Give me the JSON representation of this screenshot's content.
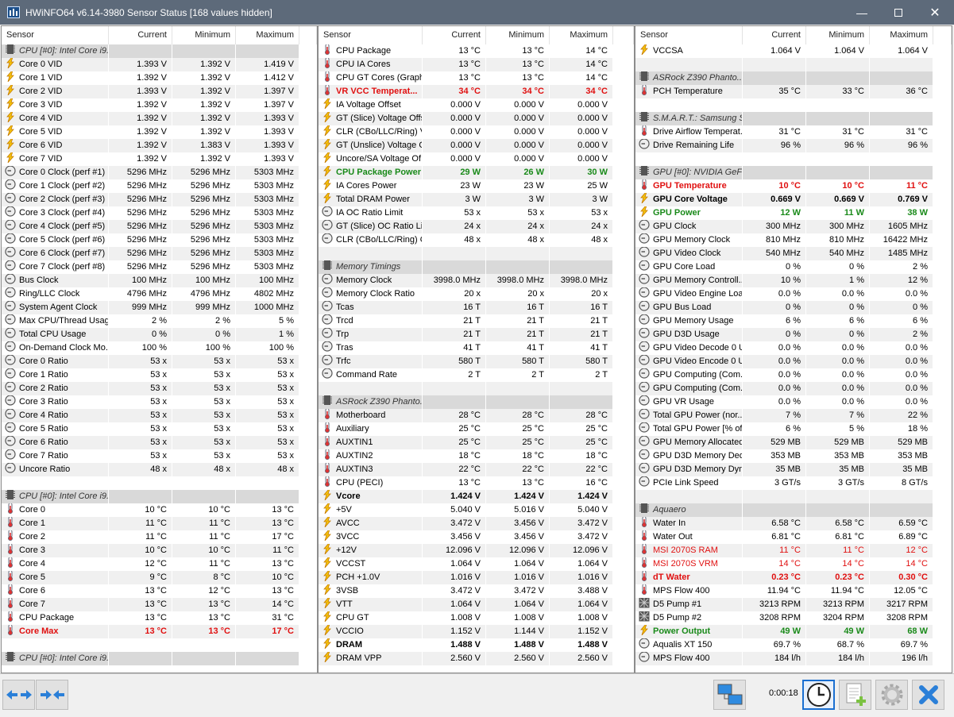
{
  "window": {
    "title": "HWiNFO64 v6.14-3980 Sensor Status [168 values hidden]",
    "controls": [
      "minimize",
      "maximize",
      "close"
    ]
  },
  "columns": {
    "sensor": "Sensor",
    "current": "Current",
    "minimum": "Minimum",
    "maximum": "Maximum"
  },
  "panels": [
    [
      {
        "group": "CPU [#0]: Intel Core i9..."
      },
      [
        "volt",
        "Core 0 VID",
        "1.393 V",
        "1.392 V",
        "1.419 V"
      ],
      [
        "volt",
        "Core 1 VID",
        "1.392 V",
        "1.392 V",
        "1.412 V"
      ],
      [
        "volt",
        "Core 2 VID",
        "1.393 V",
        "1.392 V",
        "1.397 V"
      ],
      [
        "volt",
        "Core 3 VID",
        "1.392 V",
        "1.392 V",
        "1.397 V"
      ],
      [
        "volt",
        "Core 4 VID",
        "1.392 V",
        "1.392 V",
        "1.393 V"
      ],
      [
        "volt",
        "Core 5 VID",
        "1.392 V",
        "1.392 V",
        "1.393 V"
      ],
      [
        "volt",
        "Core 6 VID",
        "1.392 V",
        "1.383 V",
        "1.393 V"
      ],
      [
        "volt",
        "Core 7 VID",
        "1.392 V",
        "1.392 V",
        "1.393 V"
      ],
      [
        "clock",
        "Core 0 Clock (perf #1)",
        "5296 MHz",
        "5296 MHz",
        "5303 MHz"
      ],
      [
        "clock",
        "Core 1 Clock (perf #2)",
        "5296 MHz",
        "5296 MHz",
        "5303 MHz"
      ],
      [
        "clock",
        "Core 2 Clock (perf #3)",
        "5296 MHz",
        "5296 MHz",
        "5303 MHz"
      ],
      [
        "clock",
        "Core 3 Clock (perf #4)",
        "5296 MHz",
        "5296 MHz",
        "5303 MHz"
      ],
      [
        "clock",
        "Core 4 Clock (perf #5)",
        "5296 MHz",
        "5296 MHz",
        "5303 MHz"
      ],
      [
        "clock",
        "Core 5 Clock (perf #6)",
        "5296 MHz",
        "5296 MHz",
        "5303 MHz"
      ],
      [
        "clock",
        "Core 6 Clock (perf #7)",
        "5296 MHz",
        "5296 MHz",
        "5303 MHz"
      ],
      [
        "clock",
        "Core 7 Clock (perf #8)",
        "5296 MHz",
        "5296 MHz",
        "5303 MHz"
      ],
      [
        "clock",
        "Bus Clock",
        "100 MHz",
        "100 MHz",
        "100 MHz"
      ],
      [
        "clock",
        "Ring/LLC Clock",
        "4796 MHz",
        "4796 MHz",
        "4802 MHz"
      ],
      [
        "clock",
        "System Agent Clock",
        "999 MHz",
        "999 MHz",
        "1000 MHz"
      ],
      [
        "clock",
        "Max CPU/Thread Usage",
        "2 %",
        "2 %",
        "5 %"
      ],
      [
        "clock",
        "Total CPU Usage",
        "0 %",
        "0 %",
        "1 %"
      ],
      [
        "clock",
        "On-Demand Clock Mo...",
        "100 %",
        "100 %",
        "100 %"
      ],
      [
        "clock",
        "Core 0 Ratio",
        "53 x",
        "53 x",
        "53 x"
      ],
      [
        "clock",
        "Core 1 Ratio",
        "53 x",
        "53 x",
        "53 x"
      ],
      [
        "clock",
        "Core 2 Ratio",
        "53 x",
        "53 x",
        "53 x"
      ],
      [
        "clock",
        "Core 3 Ratio",
        "53 x",
        "53 x",
        "53 x"
      ],
      [
        "clock",
        "Core 4 Ratio",
        "53 x",
        "53 x",
        "53 x"
      ],
      [
        "clock",
        "Core 5 Ratio",
        "53 x",
        "53 x",
        "53 x"
      ],
      [
        "clock",
        "Core 6 Ratio",
        "53 x",
        "53 x",
        "53 x"
      ],
      [
        "clock",
        "Core 7 Ratio",
        "53 x",
        "53 x",
        "53 x"
      ],
      [
        "clock",
        "Uncore Ratio",
        "48 x",
        "48 x",
        "48 x"
      ],
      null,
      {
        "group": "CPU [#0]: Intel Core i9..."
      },
      [
        "temp",
        "Core 0",
        "10 °C",
        "10 °C",
        "13 °C"
      ],
      [
        "temp",
        "Core 1",
        "11 °C",
        "11 °C",
        "13 °C"
      ],
      [
        "temp",
        "Core 2",
        "11 °C",
        "11 °C",
        "17 °C"
      ],
      [
        "temp",
        "Core 3",
        "10 °C",
        "10 °C",
        "11 °C"
      ],
      [
        "temp",
        "Core 4",
        "12 °C",
        "11 °C",
        "13 °C"
      ],
      [
        "temp",
        "Core 5",
        "9 °C",
        "8 °C",
        "10 °C"
      ],
      [
        "temp",
        "Core 6",
        "13 °C",
        "12 °C",
        "13 °C"
      ],
      [
        "temp",
        "Core 7",
        "13 °C",
        "13 °C",
        "14 °C"
      ],
      [
        "temp",
        "CPU Package",
        "13 °C",
        "13 °C",
        "31 °C"
      ],
      [
        "temp",
        "Core Max",
        "13 °C",
        "13 °C",
        "17 °C",
        "redbold"
      ],
      null,
      {
        "group": "CPU [#0]: Intel Core i9..."
      }
    ],
    [
      [
        "temp",
        "CPU Package",
        "13 °C",
        "13 °C",
        "14 °C"
      ],
      [
        "temp",
        "CPU IA Cores",
        "13 °C",
        "13 °C",
        "14 °C"
      ],
      [
        "temp",
        "CPU GT Cores (Graphi...",
        "13 °C",
        "13 °C",
        "14 °C"
      ],
      [
        "temp",
        "VR VCC Temperat...",
        "34 °C",
        "34 °C",
        "34 °C",
        "redbold"
      ],
      [
        "volt",
        "IA Voltage Offset",
        "0.000 V",
        "0.000 V",
        "0.000 V"
      ],
      [
        "volt",
        "GT (Slice) Voltage Offset",
        "0.000 V",
        "0.000 V",
        "0.000 V"
      ],
      [
        "volt",
        "CLR (CBo/LLC/Ring) V...",
        "0.000 V",
        "0.000 V",
        "0.000 V"
      ],
      [
        "volt",
        "GT (Unslice) Voltage O...",
        "0.000 V",
        "0.000 V",
        "0.000 V"
      ],
      [
        "volt",
        "Uncore/SA Voltage Of...",
        "0.000 V",
        "0.000 V",
        "0.000 V"
      ],
      [
        "volt",
        "CPU Package Power",
        "29 W",
        "26 W",
        "30 W",
        "greenbold"
      ],
      [
        "volt",
        "IA Cores Power",
        "23 W",
        "23 W",
        "25 W"
      ],
      [
        "volt",
        "Total DRAM Power",
        "3 W",
        "3 W",
        "3 W"
      ],
      [
        "clock",
        "IA OC Ratio Limit",
        "53 x",
        "53 x",
        "53 x"
      ],
      [
        "clock",
        "GT (Slice) OC Ratio Limit",
        "24 x",
        "24 x",
        "24 x"
      ],
      [
        "clock",
        "CLR (CBo/LLC/Ring) O...",
        "48 x",
        "48 x",
        "48 x"
      ],
      null,
      {
        "group": "Memory Timings"
      },
      [
        "clock",
        "Memory Clock",
        "3998.0 MHz",
        "3998.0 MHz",
        "3998.0 MHz"
      ],
      [
        "clock",
        "Memory Clock Ratio",
        "20 x",
        "20 x",
        "20 x"
      ],
      [
        "clock",
        "Tcas",
        "16 T",
        "16 T",
        "16 T"
      ],
      [
        "clock",
        "Trcd",
        "21 T",
        "21 T",
        "21 T"
      ],
      [
        "clock",
        "Trp",
        "21 T",
        "21 T",
        "21 T"
      ],
      [
        "clock",
        "Tras",
        "41 T",
        "41 T",
        "41 T"
      ],
      [
        "clock",
        "Trfc",
        "580 T",
        "580 T",
        "580 T"
      ],
      [
        "clock",
        "Command Rate",
        "2 T",
        "2 T",
        "2 T"
      ],
      null,
      {
        "group": "ASRock Z390 Phanto..."
      },
      [
        "temp",
        "Motherboard",
        "28 °C",
        "28 °C",
        "28 °C"
      ],
      [
        "temp",
        "Auxiliary",
        "25 °C",
        "25 °C",
        "25 °C"
      ],
      [
        "temp",
        "AUXTIN1",
        "25 °C",
        "25 °C",
        "25 °C"
      ],
      [
        "temp",
        "AUXTIN2",
        "18 °C",
        "18 °C",
        "18 °C"
      ],
      [
        "temp",
        "AUXTIN3",
        "22 °C",
        "22 °C",
        "22 °C"
      ],
      [
        "temp",
        "CPU (PECI)",
        "13 °C",
        "13 °C",
        "16 °C"
      ],
      [
        "volt",
        "Vcore",
        "1.424 V",
        "1.424 V",
        "1.424 V",
        "bold"
      ],
      [
        "volt",
        "+5V",
        "5.040 V",
        "5.016 V",
        "5.040 V"
      ],
      [
        "volt",
        "AVCC",
        "3.472 V",
        "3.456 V",
        "3.472 V"
      ],
      [
        "volt",
        "3VCC",
        "3.456 V",
        "3.456 V",
        "3.472 V"
      ],
      [
        "volt",
        "+12V",
        "12.096 V",
        "12.096 V",
        "12.096 V"
      ],
      [
        "volt",
        "VCCST",
        "1.064 V",
        "1.064 V",
        "1.064 V"
      ],
      [
        "volt",
        "PCH +1.0V",
        "1.016 V",
        "1.016 V",
        "1.016 V"
      ],
      [
        "volt",
        "3VSB",
        "3.472 V",
        "3.472 V",
        "3.488 V"
      ],
      [
        "volt",
        "VTT",
        "1.064 V",
        "1.064 V",
        "1.064 V"
      ],
      [
        "volt",
        "CPU GT",
        "1.008 V",
        "1.008 V",
        "1.008 V"
      ],
      [
        "volt",
        "VCCIO",
        "1.152 V",
        "1.144 V",
        "1.152 V"
      ],
      [
        "volt",
        "DRAM",
        "1.488 V",
        "1.488 V",
        "1.488 V",
        "bold"
      ],
      [
        "volt",
        "DRAM VPP",
        "2.560 V",
        "2.560 V",
        "2.560 V"
      ]
    ],
    [
      [
        "volt",
        "VCCSA",
        "1.064 V",
        "1.064 V",
        "1.064 V"
      ],
      null,
      {
        "group": "ASRock Z390 Phanto..."
      },
      [
        "temp",
        "PCH Temperature",
        "35 °C",
        "33 °C",
        "36 °C"
      ],
      null,
      {
        "group": "S.M.A.R.T.: Samsung S..."
      },
      [
        "temp",
        "Drive Airflow Temperat...",
        "31 °C",
        "31 °C",
        "31 °C"
      ],
      [
        "clock",
        "Drive Remaining Life",
        "96 %",
        "96 %",
        "96 %"
      ],
      null,
      {
        "group": "GPU [#0]: NVIDIA GeFo..."
      },
      [
        "temp",
        "GPU Temperature",
        "10 °C",
        "10 °C",
        "11 °C",
        "redbold"
      ],
      [
        "volt",
        "GPU Core Voltage",
        "0.669 V",
        "0.669 V",
        "0.769 V",
        "bold"
      ],
      [
        "volt",
        "GPU Power",
        "12 W",
        "11 W",
        "38 W",
        "greenbold"
      ],
      [
        "clock",
        "GPU Clock",
        "300 MHz",
        "300 MHz",
        "1605 MHz"
      ],
      [
        "clock",
        "GPU Memory Clock",
        "810 MHz",
        "810 MHz",
        "16422 MHz"
      ],
      [
        "clock",
        "GPU Video Clock",
        "540 MHz",
        "540 MHz",
        "1485 MHz"
      ],
      [
        "clock",
        "GPU Core Load",
        "0 %",
        "0 %",
        "2 %"
      ],
      [
        "clock",
        "GPU Memory Controll...",
        "10 %",
        "1 %",
        "12 %"
      ],
      [
        "clock",
        "GPU Video Engine Load",
        "0.0 %",
        "0.0 %",
        "0.0 %"
      ],
      [
        "clock",
        "GPU Bus Load",
        "0 %",
        "0 %",
        "0 %"
      ],
      [
        "clock",
        "GPU Memory Usage",
        "6 %",
        "6 %",
        "6 %"
      ],
      [
        "clock",
        "GPU D3D Usage",
        "0 %",
        "0 %",
        "2 %"
      ],
      [
        "clock",
        "GPU Video Decode 0 U...",
        "0.0 %",
        "0.0 %",
        "0.0 %"
      ],
      [
        "clock",
        "GPU Video Encode 0 U...",
        "0.0 %",
        "0.0 %",
        "0.0 %"
      ],
      [
        "clock",
        "GPU Computing (Com...",
        "0.0 %",
        "0.0 %",
        "0.0 %"
      ],
      [
        "clock",
        "GPU Computing (Com...",
        "0.0 %",
        "0.0 %",
        "0.0 %"
      ],
      [
        "clock",
        "GPU VR Usage",
        "0.0 %",
        "0.0 %",
        "0.0 %"
      ],
      [
        "clock",
        "Total GPU Power (nor...",
        "7 %",
        "7 %",
        "22 %"
      ],
      [
        "clock",
        "Total GPU Power [% of ...",
        "6 %",
        "5 %",
        "18 %"
      ],
      [
        "clock",
        "GPU Memory Allocated",
        "529 MB",
        "529 MB",
        "529 MB"
      ],
      [
        "clock",
        "GPU D3D Memory Ded...",
        "353 MB",
        "353 MB",
        "353 MB"
      ],
      [
        "clock",
        "GPU D3D Memory Dyn...",
        "35 MB",
        "35 MB",
        "35 MB"
      ],
      [
        "clock",
        "PCIe Link Speed",
        "3 GT/s",
        "3 GT/s",
        "8 GT/s"
      ],
      null,
      {
        "group": "Aquaero"
      },
      [
        "temp",
        "Water In",
        "6.58 °C",
        "6.58 °C",
        "6.59 °C"
      ],
      [
        "temp",
        "Water Out",
        "6.81 °C",
        "6.81 °C",
        "6.89 °C"
      ],
      [
        "temp",
        "MSI 2070S RAM",
        "11 °C",
        "11 °C",
        "12 °C",
        "red"
      ],
      [
        "temp",
        "MSI 2070S VRM",
        "14 °C",
        "14 °C",
        "14 °C",
        "red"
      ],
      [
        "temp",
        "dT Water",
        "0.23 °C",
        "0.23 °C",
        "0.30 °C",
        "redbold"
      ],
      [
        "temp",
        "MPS Flow 400",
        "11.94 °C",
        "11.94 °C",
        "12.05 °C"
      ],
      [
        "fan",
        "D5 Pump #1",
        "3213 RPM",
        "3213 RPM",
        "3217 RPM"
      ],
      [
        "fan",
        "D5 Pump #2",
        "3208 RPM",
        "3204 RPM",
        "3208 RPM"
      ],
      [
        "volt",
        "Power Output",
        "49 W",
        "49 W",
        "68 W",
        "greenbold"
      ],
      [
        "clock",
        "Aqualis XT 150",
        "69.7 %",
        "68.7 %",
        "69.7 %"
      ],
      [
        "clock",
        "MPS Flow 400",
        "184 l/h",
        "184 l/h",
        "196 l/h"
      ]
    ]
  ],
  "toolbar": {
    "elapsed": "0:00:18",
    "left_buttons": [
      "arrows-left-right-icon",
      "arrows-collapse-icon"
    ],
    "right_buttons": [
      "network-icon",
      "clock-icon",
      "report-add-icon",
      "settings-icon",
      "close-icon"
    ]
  },
  "colors": {
    "red": "#e01010",
    "green": "#1a8a1a",
    "selected": "#1a6fd1"
  }
}
